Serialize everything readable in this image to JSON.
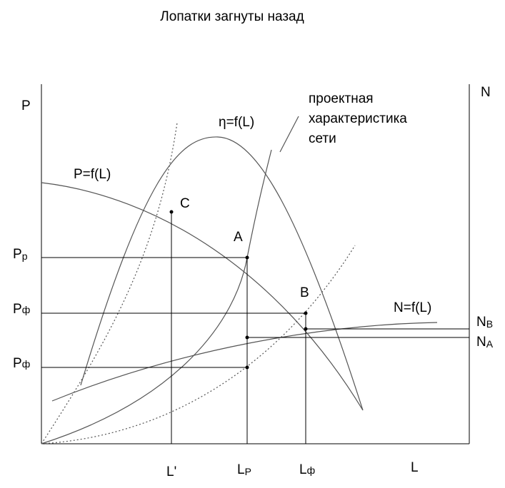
{
  "title": "Лопатки загнуты назад",
  "axes": {
    "left": "P",
    "right": "N",
    "bottom": "L"
  },
  "network_note": [
    "проектная",
    "характеристика",
    "сети"
  ],
  "curves": {
    "efficiency": "η=f(L)",
    "pressure": "P=f(L)",
    "power": "N=f(L)"
  },
  "points": {
    "c": "C",
    "a": "A",
    "b": "B"
  },
  "levels": [
    {
      "main": "P",
      "sub": "р"
    },
    {
      "main": "P",
      "sub": "ф"
    },
    {
      "main": "P",
      "sub": "ф"
    },
    {
      "main": "N",
      "sub": "B"
    },
    {
      "main": "N",
      "sub": "A"
    }
  ],
  "flows": [
    {
      "main": "L'"
    },
    {
      "main": "L",
      "sub": "P"
    },
    {
      "main": "L",
      "sub": "ф"
    }
  ]
}
